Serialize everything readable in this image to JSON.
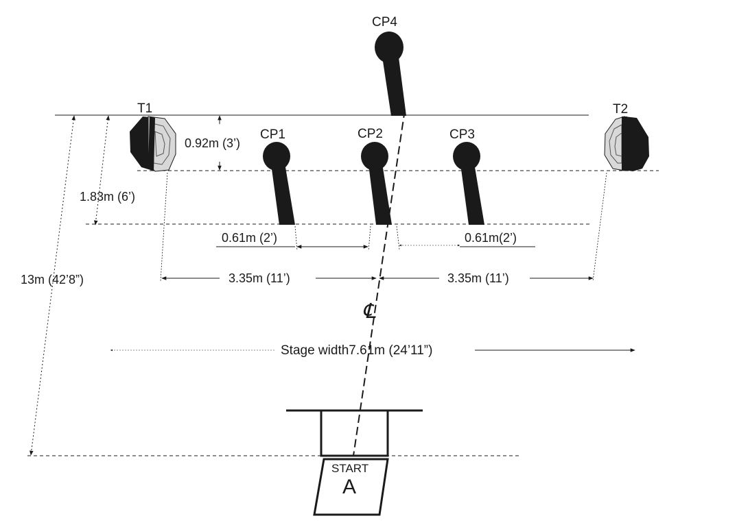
{
  "targets": {
    "t1": "T1",
    "t2": "T2"
  },
  "poppers": {
    "cp1": "CP1",
    "cp2": "CP2",
    "cp3": "CP3",
    "cp4": "CP4"
  },
  "dimensions": {
    "target_offset": "0.92m (3’)",
    "popper_depth": "1.83m (6’)",
    "gap_left": "0.61m (2’)",
    "gap_right": "0.61m(2’)",
    "half_left": "3.35m (11’)",
    "half_right": "3.35m (11’)",
    "total_depth": "13m (42’8”)",
    "stage_width": "Stage width7.61m (24’11”)"
  },
  "centerline_symbol": "℄",
  "start_box": {
    "label": "START",
    "position": "A"
  },
  "colors": {
    "ink": "#1a1a1a",
    "target_gray": "#d8d8d8"
  }
}
